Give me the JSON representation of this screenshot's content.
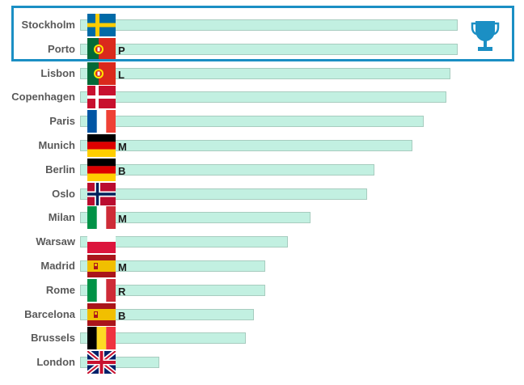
{
  "chart_data": {
    "type": "bar",
    "orientation": "horizontal",
    "categories": [
      "Stockholm",
      "Porto",
      "Lisbon",
      "Copenhagen",
      "Paris",
      "Munich",
      "Berlin",
      "Oslo",
      "Milan",
      "Warsaw",
      "Madrid",
      "Rome",
      "Barcelona",
      "Brussels",
      "London"
    ],
    "values": [
      100,
      100,
      98,
      97,
      91,
      88,
      78,
      76,
      61,
      55,
      49,
      49,
      46,
      44,
      21
    ],
    "bar_letters": [
      "",
      "P",
      "L",
      "",
      "",
      "M",
      "B",
      "",
      "M",
      "",
      "M",
      "R",
      "B",
      "",
      ""
    ],
    "flags": [
      "sweden",
      "portugal",
      "portugal",
      "denmark",
      "france",
      "germany",
      "germany",
      "norway",
      "italy",
      "poland",
      "spain",
      "italy",
      "spain",
      "belgium",
      "united-kingdom"
    ],
    "highlight": {
      "top_n": 2,
      "icon": "trophy-icon",
      "color": "#1b8fc4"
    },
    "bar_color": "#c2f0e1",
    "bar_border_color": "#a7ccbf",
    "title": "",
    "xlabel": "",
    "ylabel": "",
    "xlim": [
      0,
      100
    ],
    "grid": false,
    "legend": "none"
  }
}
